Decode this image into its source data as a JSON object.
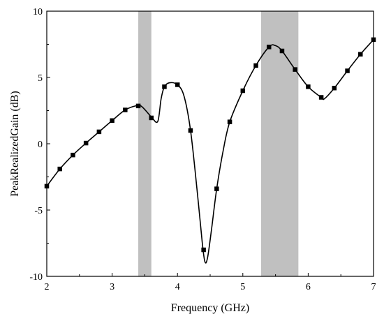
{
  "chart_data": {
    "type": "line",
    "xlabel": "Frequency (GHz)",
    "ylabel": "PeakRealizedGain (dB)",
    "xlim": [
      2,
      7
    ],
    "ylim": [
      -10,
      10
    ],
    "x_ticks": [
      2,
      3,
      4,
      5,
      6,
      7
    ],
    "y_ticks": [
      -10,
      -5,
      0,
      5,
      10
    ],
    "grid": false,
    "shaded_bands": [
      {
        "x_start": 3.4,
        "x_end": 3.6,
        "color": "#c0c0c0"
      },
      {
        "x_start": 5.28,
        "x_end": 5.85,
        "color": "#c0c0c0"
      }
    ],
    "series": [
      {
        "line_color": "#000000",
        "marker": "square",
        "curve": [
          [
            2.0,
            -3.2
          ],
          [
            2.2,
            -1.9
          ],
          [
            2.4,
            -0.85
          ],
          [
            2.6,
            0.05
          ],
          [
            2.8,
            0.9
          ],
          [
            3.0,
            1.75
          ],
          [
            3.2,
            2.55
          ],
          [
            3.38,
            2.88
          ],
          [
            3.45,
            2.82
          ],
          [
            3.55,
            2.3
          ],
          [
            3.62,
            1.9
          ],
          [
            3.7,
            1.7
          ],
          [
            3.75,
            3.4
          ],
          [
            3.8,
            4.3
          ],
          [
            3.88,
            4.6
          ],
          [
            4.0,
            4.45
          ],
          [
            4.1,
            3.6
          ],
          [
            4.2,
            1.0
          ],
          [
            4.3,
            -3.5
          ],
          [
            4.38,
            -7.5
          ],
          [
            4.42,
            -8.9
          ],
          [
            4.46,
            -8.6
          ],
          [
            4.52,
            -6.5
          ],
          [
            4.6,
            -3.4
          ],
          [
            4.7,
            -0.5
          ],
          [
            4.8,
            1.65
          ],
          [
            5.0,
            4.0
          ],
          [
            5.2,
            5.9
          ],
          [
            5.4,
            7.3
          ],
          [
            5.5,
            7.4
          ],
          [
            5.6,
            7.0
          ],
          [
            5.8,
            5.6
          ],
          [
            6.0,
            4.3
          ],
          [
            6.2,
            3.5
          ],
          [
            6.25,
            3.4
          ],
          [
            6.4,
            4.2
          ],
          [
            6.6,
            5.5
          ],
          [
            6.8,
            6.75
          ],
          [
            7.0,
            7.85
          ]
        ],
        "markers": [
          [
            2.0,
            -3.2
          ],
          [
            2.2,
            -1.9
          ],
          [
            2.4,
            -0.85
          ],
          [
            2.6,
            0.05
          ],
          [
            2.8,
            0.9
          ],
          [
            3.0,
            1.75
          ],
          [
            3.2,
            2.55
          ],
          [
            3.4,
            2.85
          ],
          [
            3.6,
            1.95
          ],
          [
            3.8,
            4.3
          ],
          [
            4.0,
            4.45
          ],
          [
            4.2,
            1.0
          ],
          [
            4.4,
            -8.0
          ],
          [
            4.6,
            -3.4
          ],
          [
            4.8,
            1.65
          ],
          [
            5.0,
            4.0
          ],
          [
            5.2,
            5.9
          ],
          [
            5.4,
            7.3
          ],
          [
            5.6,
            7.0
          ],
          [
            5.8,
            5.6
          ],
          [
            6.0,
            4.3
          ],
          [
            6.2,
            3.5
          ],
          [
            6.4,
            4.2
          ],
          [
            6.6,
            5.5
          ],
          [
            6.8,
            6.75
          ],
          [
            7.0,
            7.85
          ]
        ]
      }
    ]
  }
}
